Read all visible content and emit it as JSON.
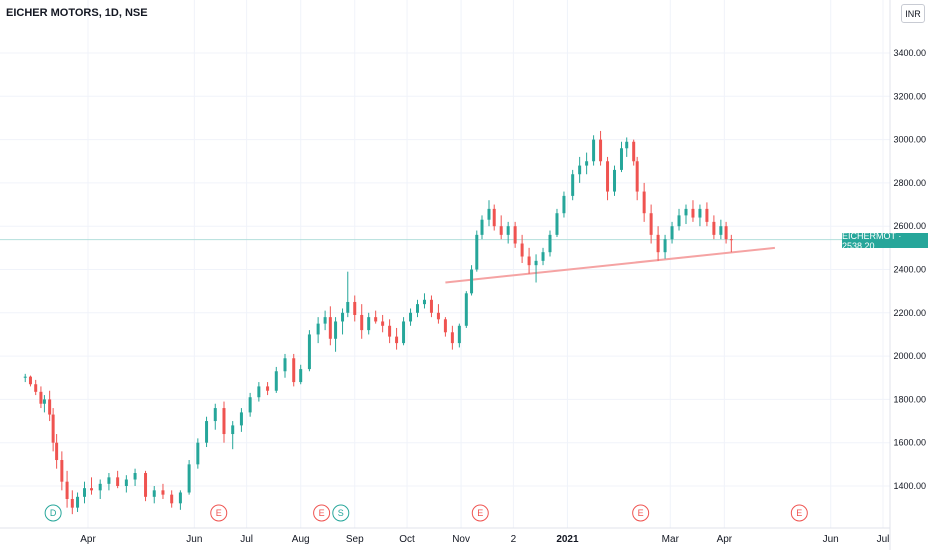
{
  "header": {
    "title": "EICHER MOTORS, 1D, NSE",
    "currency": "INR"
  },
  "price_tag": {
    "symbol": "EICHERMOT",
    "value": "2538.20",
    "label": "EICHERMOT · 2538.20"
  },
  "colors": {
    "up": "#26a69a",
    "down": "#ef5350",
    "grid": "#f0f3fa",
    "trendline": "#f5a3a3",
    "last_price_line": "#b2dfdb"
  },
  "chart_data": {
    "type": "candlestick",
    "title": "EICHER MOTORS, 1D, NSE",
    "ylim": [
      1250,
      3650
    ],
    "y_ticks": [
      1400,
      1600,
      1800,
      2000,
      2200,
      2400,
      2600,
      2800,
      3000,
      3200,
      3400
    ],
    "y_tick_labels": [
      "1400.00",
      "1600.00",
      "1800.00",
      "2000.00",
      "2200.00",
      "2400.00",
      "2600.00",
      "2800.00",
      "3000.00",
      "3200.00",
      "3400.00"
    ],
    "x_tick_labels": [
      "Apr",
      "Jun",
      "Jul",
      "Aug",
      "Sep",
      "Oct",
      "Nov",
      "2",
      "2021",
      "Mar",
      "Apr",
      "Jun",
      "Jul"
    ],
    "x_tick_dates": [
      "2020-04-01",
      "2020-06-01",
      "2020-07-01",
      "2020-08-01",
      "2020-09-01",
      "2020-10-01",
      "2020-11-01",
      "2020-12-01",
      "2021-01-01",
      "2021-03-01",
      "2021-04-01",
      "2021-06-01",
      "2021-07-01"
    ],
    "last_price": 2538.2,
    "trendline": {
      "start": [
        "2020-10-23",
        2340
      ],
      "end": [
        "2021-04-30",
        2500
      ]
    },
    "events": [
      {
        "label": "D",
        "date": "2020-03-12",
        "kind": "dividend"
      },
      {
        "label": "E",
        "date": "2020-06-15",
        "kind": "earnings"
      },
      {
        "label": "E",
        "date": "2020-08-13",
        "kind": "earnings"
      },
      {
        "label": "S",
        "date": "2020-08-24",
        "kind": "split"
      },
      {
        "label": "E",
        "date": "2020-11-12",
        "kind": "earnings"
      },
      {
        "label": "E",
        "date": "2021-02-12",
        "kind": "earnings"
      },
      {
        "label": "E",
        "date": "2021-05-14",
        "kind": "earnings"
      }
    ],
    "candles": [
      [
        "2020-02-25",
        1900,
        1918,
        1880,
        1905
      ],
      [
        "2020-02-28",
        1905,
        1910,
        1860,
        1870
      ],
      [
        "2020-03-02",
        1870,
        1890,
        1820,
        1835
      ],
      [
        "2020-03-05",
        1835,
        1860,
        1760,
        1780
      ],
      [
        "2020-03-07",
        1780,
        1820,
        1740,
        1800
      ],
      [
        "2020-03-10",
        1800,
        1840,
        1700,
        1730
      ],
      [
        "2020-03-12",
        1730,
        1760,
        1560,
        1600
      ],
      [
        "2020-03-14",
        1600,
        1640,
        1480,
        1520
      ],
      [
        "2020-03-17",
        1520,
        1560,
        1380,
        1420
      ],
      [
        "2020-03-20",
        1420,
        1470,
        1300,
        1340
      ],
      [
        "2020-03-23",
        1340,
        1380,
        1270,
        1300
      ],
      [
        "2020-03-26",
        1300,
        1370,
        1280,
        1350
      ],
      [
        "2020-03-30",
        1350,
        1420,
        1320,
        1390
      ],
      [
        "2020-04-03",
        1390,
        1440,
        1360,
        1380
      ],
      [
        "2020-04-08",
        1380,
        1430,
        1340,
        1410
      ],
      [
        "2020-04-13",
        1410,
        1460,
        1380,
        1440
      ],
      [
        "2020-04-18",
        1440,
        1470,
        1390,
        1400
      ],
      [
        "2020-04-23",
        1400,
        1450,
        1370,
        1430
      ],
      [
        "2020-04-28",
        1430,
        1480,
        1400,
        1460
      ],
      [
        "2020-05-04",
        1460,
        1470,
        1330,
        1350
      ],
      [
        "2020-05-09",
        1350,
        1400,
        1320,
        1380
      ],
      [
        "2020-05-14",
        1380,
        1410,
        1340,
        1360
      ],
      [
        "2020-05-19",
        1360,
        1380,
        1300,
        1320
      ],
      [
        "2020-05-24",
        1320,
        1380,
        1290,
        1370
      ],
      [
        "2020-05-29",
        1370,
        1520,
        1360,
        1500
      ],
      [
        "2020-06-03",
        1500,
        1620,
        1480,
        1600
      ],
      [
        "2020-06-08",
        1600,
        1720,
        1580,
        1700
      ],
      [
        "2020-06-13",
        1700,
        1780,
        1660,
        1760
      ],
      [
        "2020-06-18",
        1760,
        1790,
        1600,
        1640
      ],
      [
        "2020-06-23",
        1640,
        1700,
        1570,
        1680
      ],
      [
        "2020-06-28",
        1680,
        1760,
        1650,
        1740
      ],
      [
        "2020-07-03",
        1740,
        1830,
        1720,
        1810
      ],
      [
        "2020-07-08",
        1810,
        1880,
        1790,
        1860
      ],
      [
        "2020-07-13",
        1860,
        1880,
        1820,
        1840
      ],
      [
        "2020-07-18",
        1840,
        1950,
        1830,
        1930
      ],
      [
        "2020-07-23",
        1930,
        2010,
        1900,
        1990
      ],
      [
        "2020-07-28",
        1990,
        2010,
        1860,
        1880
      ],
      [
        "2020-08-01",
        1880,
        1960,
        1870,
        1940
      ],
      [
        "2020-08-06",
        1940,
        2120,
        1930,
        2100
      ],
      [
        "2020-08-11",
        2100,
        2180,
        2060,
        2150
      ],
      [
        "2020-08-15",
        2150,
        2210,
        2120,
        2180
      ],
      [
        "2020-08-18",
        2180,
        2230,
        2050,
        2080
      ],
      [
        "2020-08-21",
        2080,
        2180,
        2020,
        2160
      ],
      [
        "2020-08-25",
        2160,
        2220,
        2100,
        2200
      ],
      [
        "2020-08-28",
        2200,
        2390,
        2180,
        2250
      ],
      [
        "2020-09-01",
        2250,
        2280,
        2160,
        2190
      ],
      [
        "2020-09-05",
        2190,
        2240,
        2080,
        2120
      ],
      [
        "2020-09-09",
        2120,
        2200,
        2100,
        2180
      ],
      [
        "2020-09-13",
        2180,
        2210,
        2150,
        2160
      ],
      [
        "2020-09-17",
        2160,
        2190,
        2110,
        2140
      ],
      [
        "2020-09-21",
        2140,
        2170,
        2060,
        2090
      ],
      [
        "2020-09-25",
        2090,
        2130,
        2030,
        2060
      ],
      [
        "2020-09-29",
        2060,
        2180,
        2050,
        2160
      ],
      [
        "2020-10-03",
        2160,
        2220,
        2140,
        2200
      ],
      [
        "2020-10-07",
        2200,
        2260,
        2180,
        2240
      ],
      [
        "2020-10-11",
        2240,
        2290,
        2220,
        2260
      ],
      [
        "2020-10-15",
        2260,
        2280,
        2180,
        2200
      ],
      [
        "2020-10-19",
        2200,
        2240,
        2150,
        2170
      ],
      [
        "2020-10-23",
        2170,
        2180,
        2090,
        2110
      ],
      [
        "2020-10-27",
        2110,
        2140,
        2030,
        2060
      ],
      [
        "2020-10-31",
        2060,
        2150,
        2040,
        2140
      ],
      [
        "2020-11-04",
        2140,
        2300,
        2130,
        2290
      ],
      [
        "2020-11-07",
        2290,
        2420,
        2280,
        2400
      ],
      [
        "2020-11-10",
        2400,
        2580,
        2390,
        2560
      ],
      [
        "2020-11-13",
        2560,
        2650,
        2540,
        2630
      ],
      [
        "2020-11-17",
        2630,
        2720,
        2600,
        2680
      ],
      [
        "2020-11-20",
        2680,
        2700,
        2580,
        2600
      ],
      [
        "2020-11-24",
        2600,
        2650,
        2540,
        2560
      ],
      [
        "2020-11-28",
        2560,
        2620,
        2520,
        2600
      ],
      [
        "2020-12-02",
        2600,
        2620,
        2500,
        2520
      ],
      [
        "2020-12-06",
        2520,
        2560,
        2430,
        2460
      ],
      [
        "2020-12-10",
        2460,
        2500,
        2380,
        2420
      ],
      [
        "2020-12-14",
        2420,
        2470,
        2340,
        2440
      ],
      [
        "2020-12-18",
        2440,
        2500,
        2420,
        2480
      ],
      [
        "2020-12-22",
        2480,
        2580,
        2460,
        2560
      ],
      [
        "2020-12-26",
        2560,
        2680,
        2550,
        2660
      ],
      [
        "2020-12-30",
        2660,
        2760,
        2640,
        2740
      ],
      [
        "2021-01-04",
        2740,
        2860,
        2720,
        2840
      ],
      [
        "2021-01-08",
        2840,
        2920,
        2800,
        2880
      ],
      [
        "2021-01-12",
        2880,
        2940,
        2840,
        2900
      ],
      [
        "2021-01-16",
        2900,
        3020,
        2880,
        3000
      ],
      [
        "2021-01-20",
        3000,
        3040,
        2880,
        2900
      ],
      [
        "2021-01-24",
        2900,
        2920,
        2720,
        2760
      ],
      [
        "2021-01-28",
        2760,
        2880,
        2740,
        2860
      ],
      [
        "2021-02-01",
        2860,
        2990,
        2850,
        2960
      ],
      [
        "2021-02-04",
        2960,
        3010,
        2920,
        2990
      ],
      [
        "2021-02-08",
        2990,
        3000,
        2880,
        2900
      ],
      [
        "2021-02-10",
        2900,
        2920,
        2720,
        2760
      ],
      [
        "2021-02-14",
        2760,
        2800,
        2620,
        2660
      ],
      [
        "2021-02-18",
        2660,
        2700,
        2520,
        2560
      ],
      [
        "2021-02-22",
        2560,
        2600,
        2440,
        2480
      ],
      [
        "2021-02-26",
        2480,
        2560,
        2450,
        2540
      ],
      [
        "2021-03-02",
        2540,
        2620,
        2520,
        2600
      ],
      [
        "2021-03-06",
        2600,
        2680,
        2580,
        2650
      ],
      [
        "2021-03-10",
        2650,
        2700,
        2610,
        2680
      ],
      [
        "2021-03-14",
        2680,
        2720,
        2620,
        2640
      ],
      [
        "2021-03-18",
        2640,
        2700,
        2600,
        2680
      ],
      [
        "2021-03-22",
        2680,
        2710,
        2600,
        2620
      ],
      [
        "2021-03-26",
        2620,
        2650,
        2540,
        2560
      ],
      [
        "2021-03-30",
        2560,
        2630,
        2540,
        2600
      ],
      [
        "2021-04-02",
        2600,
        2620,
        2520,
        2540
      ],
      [
        "2021-04-05",
        2540,
        2560,
        2480,
        2538.2
      ]
    ]
  }
}
